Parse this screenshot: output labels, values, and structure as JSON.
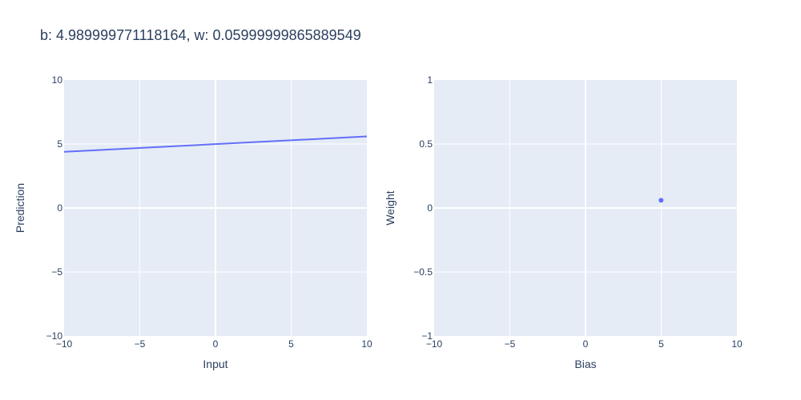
{
  "figure": {
    "title": "b: 4.989999771118164, w: 0.05999999865889549"
  },
  "colors": {
    "plot_bg": "#e5ecf6",
    "grid": "#ffffff",
    "series": "#636efa",
    "text": "#2a3f5f"
  },
  "chart_data": [
    {
      "type": "line",
      "xlabel": "Input",
      "ylabel": "Prediction",
      "xlim": [
        -10,
        10
      ],
      "ylim": [
        -10,
        10
      ],
      "x_ticks": [
        -10,
        -5,
        0,
        5,
        10
      ],
      "y_ticks": [
        -10,
        -5,
        0,
        5,
        10
      ],
      "x_tick_labels": [
        "−10",
        "−5",
        "0",
        "5",
        "10"
      ],
      "y_tick_labels": [
        "−10",
        "−5",
        "0",
        "5",
        "10"
      ],
      "grid": true,
      "series": [
        {
          "x": [
            -10,
            10
          ],
          "y": [
            4.39,
            5.59
          ]
        }
      ]
    },
    {
      "type": "scatter",
      "xlabel": "Bias",
      "ylabel": "Weight",
      "xlim": [
        -10,
        10
      ],
      "ylim": [
        -1,
        1
      ],
      "x_ticks": [
        -10,
        -5,
        0,
        5,
        10
      ],
      "y_ticks": [
        -1,
        -0.5,
        0,
        0.5,
        1
      ],
      "x_tick_labels": [
        "−10",
        "−5",
        "0",
        "5",
        "10"
      ],
      "y_tick_labels": [
        "−1",
        "−0.5",
        "0",
        "0.5",
        "1"
      ],
      "grid": true,
      "series": [
        {
          "x": [
            4.99
          ],
          "y": [
            0.06
          ]
        }
      ]
    }
  ]
}
